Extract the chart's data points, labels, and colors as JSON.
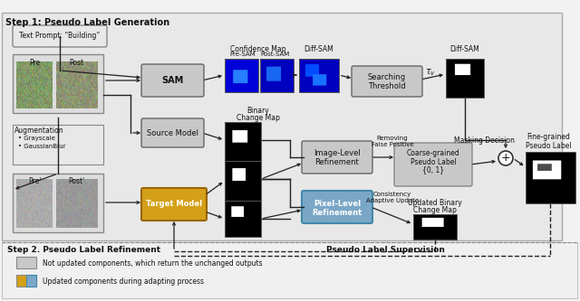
{
  "title": "Step 1: Pseudo Label Generation",
  "step2_label": "Step 2. Pseudo Label Refinement",
  "pseudo_supervision_label": "Pseudo Label Supervision",
  "legend_gray_text": "Not updated components, which return the unchanged outputs",
  "legend_blue_text": "Updated components during adapting process",
  "bg_color": "#f0f0f0",
  "box_gray": "#c8c8c8",
  "box_orange": "#d4a017",
  "box_blue": "#7ba7c7",
  "box_white": "#ffffff",
  "arrow_color": "#222222",
  "text_color": "#111111",
  "border_color": "#555555",
  "step1_bg": "#e8e8e8",
  "step2_bg": "#f5f5f5"
}
